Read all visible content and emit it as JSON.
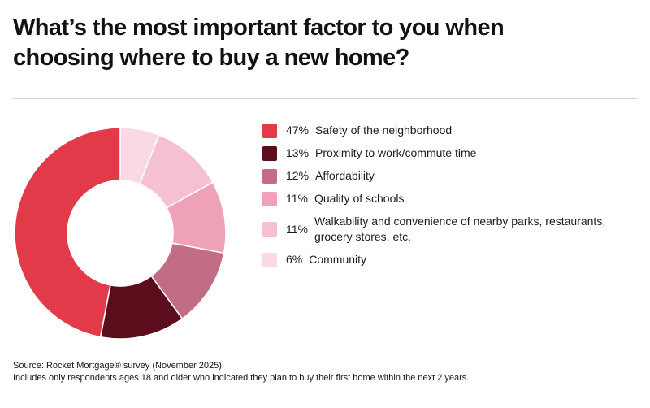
{
  "title": "What’s the most important factor to you when\nchoosing where to buy a new home?",
  "chart_data": {
    "type": "pie",
    "subtype": "donut",
    "title": "What’s the most important factor to you when choosing where to buy a new home?",
    "donut_hole_ratio": 0.5,
    "start_angle_deg": 0,
    "winding": "slices fan counterclockwise from 12 o'clock in legend order (largest slice fills the left side)",
    "legend_position": "right",
    "separator_color": "#ffffff",
    "slices": [
      {
        "label": "Safety of the neighborhood",
        "percent": "47%",
        "value": 47,
        "color": "#e23a48"
      },
      {
        "label": "Proximity to work/commute time",
        "percent": "13%",
        "value": 13,
        "color": "#5c0d1c"
      },
      {
        "label": "Affordability",
        "percent": "12%",
        "value": 12,
        "color": "#c16d86"
      },
      {
        "label": "Quality of schools",
        "percent": "11%",
        "value": 11,
        "color": "#efa1b7"
      },
      {
        "label": "Walkability and convenience of nearby parks, restaurants, grocery stores, etc.",
        "percent": "11%",
        "value": 11,
        "color": "#f5c0d1"
      },
      {
        "label": "Community",
        "percent": "6%",
        "value": 6,
        "color": "#f9d9e3"
      }
    ]
  },
  "footer": {
    "line1": "Source: Rocket Mortgage® survey (November 2025).",
    "line2": "Includes only respondents ages 18 and older who indicated they plan to buy their first home within the next 2 years."
  }
}
